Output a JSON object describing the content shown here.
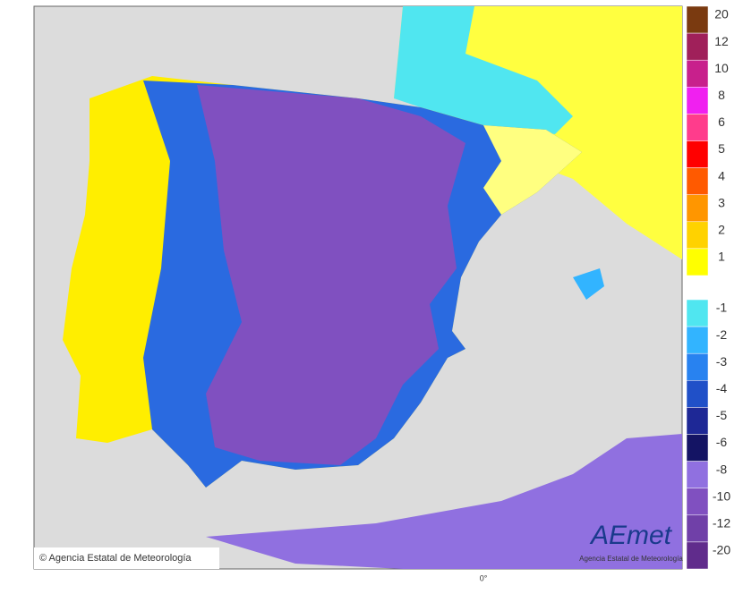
{
  "map": {
    "copyright": "© Agencia Estatal de Meteorología",
    "logo": "AEmet",
    "logo_subtitle": "Agencia Estatal de Meteorología",
    "meridian_label": "0°"
  },
  "legend": {
    "upper": [
      {
        "value": 20,
        "color": "#7a3a10"
      },
      {
        "value": 12,
        "color": "#a0205a"
      },
      {
        "value": 10,
        "color": "#c8208c"
      },
      {
        "value": 8,
        "color": "#f020f0"
      },
      {
        "value": 6,
        "color": "#ff3c8c"
      },
      {
        "value": 5,
        "color": "#ff0000"
      },
      {
        "value": 4,
        "color": "#ff5a00"
      },
      {
        "value": 3,
        "color": "#ff9600"
      },
      {
        "value": 2,
        "color": "#ffd200"
      },
      {
        "value": 1,
        "color": "#ffff00"
      }
    ],
    "lower": [
      {
        "value": -1,
        "color": "#50e6f0"
      },
      {
        "value": -2,
        "color": "#32b4ff"
      },
      {
        "value": -3,
        "color": "#2882f0"
      },
      {
        "value": -4,
        "color": "#2050c8"
      },
      {
        "value": -5,
        "color": "#1e2896"
      },
      {
        "value": -6,
        "color": "#141464"
      },
      {
        "value": -8,
        "color": "#9070e0"
      },
      {
        "value": -10,
        "color": "#8050c0"
      },
      {
        "value": -12,
        "color": "#7040a8"
      },
      {
        "value": -20,
        "color": "#602c8c"
      }
    ]
  }
}
